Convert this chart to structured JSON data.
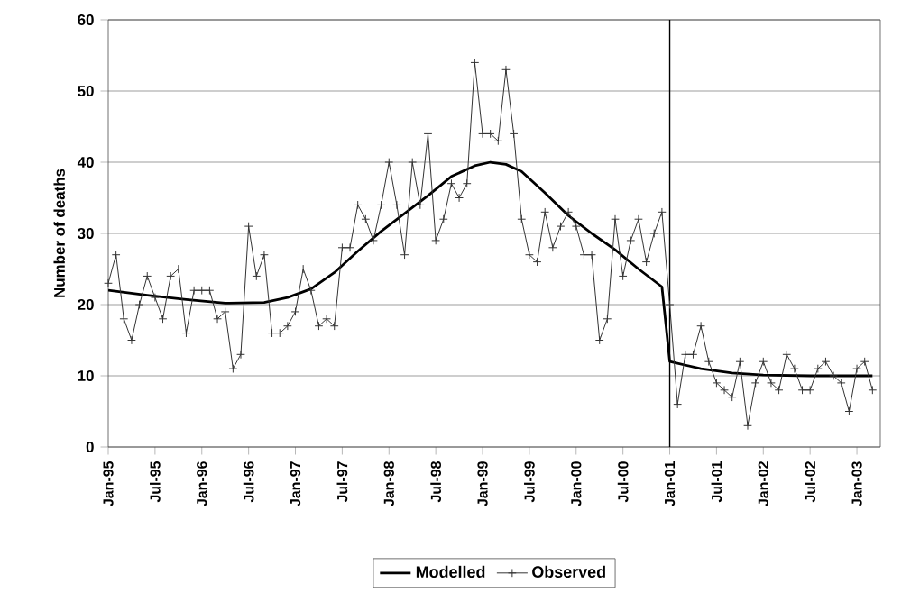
{
  "chart_data": {
    "type": "line",
    "ylabel": "Number of deaths",
    "x": [
      "1995-01",
      "1995-06",
      "1995-11",
      "1996-04",
      "1996-09",
      "1996-12",
      "1997-03",
      "1997-06",
      "1997-09",
      "1997-12",
      "1998-03",
      "1998-06",
      "1998-09",
      "1998-12",
      "1999-02",
      "1999-04",
      "1999-06",
      "1999-09",
      "1999-12",
      "2000-03",
      "2000-06",
      "2000-09",
      "2000-12",
      "2001-01",
      "2001-05",
      "2001-09",
      "2002-01",
      "2002-07",
      "2003-03"
    ],
    "series": [
      {
        "name": "Modelled",
        "color": "#000000",
        "marker": "none",
        "values": [
          22,
          21.3,
          20.7,
          20.2,
          20.3,
          21,
          22.2,
          24.5,
          27.5,
          30.3,
          32.8,
          35.3,
          38,
          39.5,
          40,
          39.7,
          38.7,
          35.7,
          32.5,
          30,
          27.7,
          25,
          22.5,
          12,
          11,
          10.4,
          10.1,
          10,
          10
        ]
      },
      {
        "name": "Observed",
        "color": "#333333",
        "marker": "cross",
        "x": [
          "1995-01",
          "1995-02",
          "1995-03",
          "1995-04",
          "1995-05",
          "1995-06",
          "1995-07",
          "1995-08",
          "1995-09",
          "1995-10",
          "1995-11",
          "1995-12",
          "1996-01",
          "1996-02",
          "1996-03",
          "1996-04",
          "1996-05",
          "1996-06",
          "1996-07",
          "1996-08",
          "1996-09",
          "1996-10",
          "1996-11",
          "1996-12",
          "1997-01",
          "1997-02",
          "1997-03",
          "1997-04",
          "1997-05",
          "1997-06",
          "1997-07",
          "1997-08",
          "1997-09",
          "1997-10",
          "1997-11",
          "1997-12",
          "1998-01",
          "1998-02",
          "1998-03",
          "1998-04",
          "1998-05",
          "1998-06",
          "1998-07",
          "1998-08",
          "1998-09",
          "1998-10",
          "1998-11",
          "1998-12",
          "1999-01",
          "1999-02",
          "1999-03",
          "1999-04",
          "1999-05",
          "1999-06",
          "1999-07",
          "1999-08",
          "1999-09",
          "1999-10",
          "1999-11",
          "1999-12",
          "2000-01",
          "2000-02",
          "2000-03",
          "2000-04",
          "2000-05",
          "2000-06",
          "2000-07",
          "2000-08",
          "2000-09",
          "2000-10",
          "2000-11",
          "2000-12",
          "2001-01",
          "2001-02",
          "2001-03",
          "2001-04",
          "2001-05",
          "2001-06",
          "2001-07",
          "2001-08",
          "2001-09",
          "2001-10",
          "2001-11",
          "2001-12",
          "2002-01",
          "2002-02",
          "2002-03",
          "2002-04",
          "2002-05",
          "2002-06",
          "2002-07",
          "2002-08",
          "2002-09",
          "2002-10",
          "2002-11",
          "2002-12",
          "2003-01",
          "2003-02",
          "2003-03"
        ],
        "values": [
          23,
          27,
          18,
          15,
          20,
          24,
          21,
          18,
          24,
          25,
          16,
          22,
          22,
          22,
          18,
          19,
          11,
          13,
          31,
          24,
          27,
          16,
          16,
          17,
          19,
          25,
          22,
          17,
          18,
          17,
          28,
          28,
          34,
          32,
          29,
          34,
          40,
          34,
          27,
          40,
          34,
          44,
          29,
          32,
          37,
          35,
          37,
          54,
          44,
          44,
          43,
          53,
          44,
          32,
          27,
          26,
          33,
          28,
          31,
          33,
          31,
          27,
          27,
          15,
          18,
          32,
          24,
          29,
          32,
          26,
          30,
          33,
          20,
          6,
          13,
          13,
          17,
          12,
          9,
          8,
          7,
          12,
          3,
          9,
          12,
          9,
          8,
          13,
          11,
          8,
          8,
          11,
          12,
          10,
          9,
          5,
          11,
          12,
          8
        ]
      }
    ],
    "xlim": [
      "1995-01",
      "2003-04"
    ],
    "xticks": [
      {
        "value": "1995-01",
        "label": "Jan-95"
      },
      {
        "value": "1995-07",
        "label": "Jul-95"
      },
      {
        "value": "1996-01",
        "label": "Jan-96"
      },
      {
        "value": "1996-07",
        "label": "Jul-96"
      },
      {
        "value": "1997-01",
        "label": "Jan-97"
      },
      {
        "value": "1997-07",
        "label": "Jul-97"
      },
      {
        "value": "1998-01",
        "label": "Jan-98"
      },
      {
        "value": "1998-07",
        "label": "Jul-98"
      },
      {
        "value": "1999-01",
        "label": "Jan-99"
      },
      {
        "value": "1999-07",
        "label": "Jul-99"
      },
      {
        "value": "2000-01",
        "label": "Jan-00"
      },
      {
        "value": "2000-07",
        "label": "Jul-00"
      },
      {
        "value": "2001-01",
        "label": "Jan-01"
      },
      {
        "value": "2001-07",
        "label": "Jul-01"
      },
      {
        "value": "2002-01",
        "label": "Jan-02"
      },
      {
        "value": "2002-07",
        "label": "Jul-02"
      },
      {
        "value": "2003-01",
        "label": "Jan-03"
      }
    ],
    "ylim": [
      0,
      60
    ],
    "yticks": [
      0,
      10,
      20,
      30,
      40,
      50,
      60
    ],
    "grid": "y",
    "legend": "bottom",
    "ref_lines": [
      {
        "axis": "x",
        "value": "2001-01",
        "color": "#000000"
      }
    ]
  }
}
